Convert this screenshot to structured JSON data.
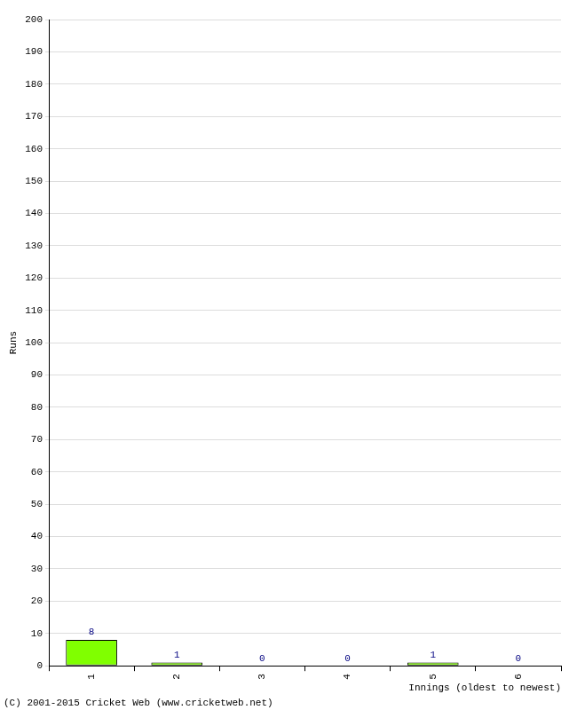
{
  "chart_data": {
    "type": "bar",
    "categories": [
      "1",
      "2",
      "3",
      "4",
      "5",
      "6"
    ],
    "values": [
      8,
      1,
      0,
      0,
      1,
      0
    ],
    "color": "#80ff00",
    "xlabel": "Innings (oldest to newest)",
    "ylabel": "Runs",
    "annotations": [
      "(C) 2001-2015 Cricket Web (www.cricketweb.net)"
    ],
    "ylim": [
      0,
      200
    ],
    "yticks": [
      0,
      10,
      20,
      30,
      40,
      50,
      60,
      70,
      80,
      90,
      100,
      110,
      120,
      130,
      140,
      150,
      160,
      170,
      180,
      190,
      200
    ],
    "grid": true,
    "data_labels": true
  }
}
